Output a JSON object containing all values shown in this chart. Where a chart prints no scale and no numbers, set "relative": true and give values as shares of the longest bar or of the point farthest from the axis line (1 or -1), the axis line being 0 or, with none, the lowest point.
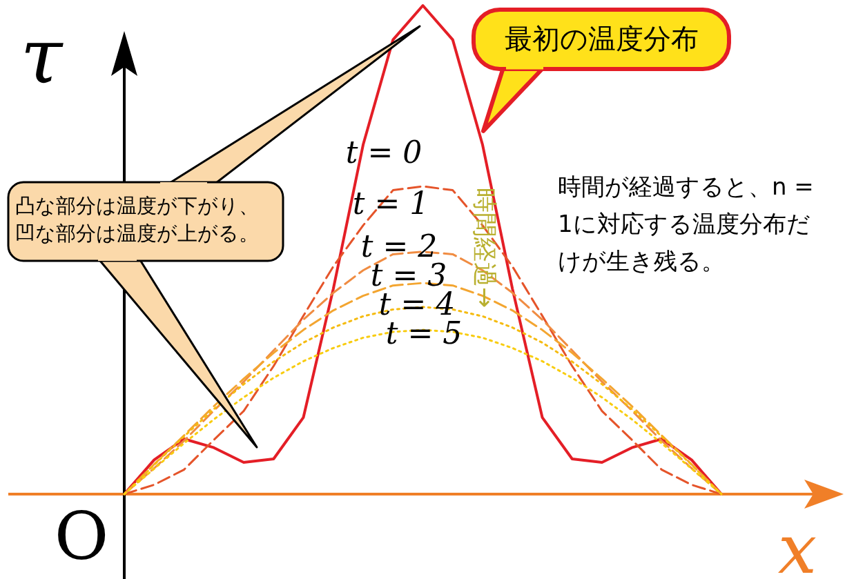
{
  "chart_data": {
    "type": "line",
    "relative": true,
    "xlabel": "x",
    "ylabel": "τ",
    "grid": false,
    "legend": false,
    "marker": "none",
    "categories": [
      null,
      null,
      null,
      null,
      null,
      null,
      null,
      null,
      null,
      null,
      null,
      null,
      null,
      null,
      null,
      null,
      null,
      null,
      null,
      null,
      null
    ],
    "annotations": [
      "O",
      "最初の温度分布",
      "凸な部分は温度が下がり、凹な部分は温度が上がる。",
      "時間が経過すると、n = 1に対応する温度分布だけが生き残る。",
      "時間経過→"
    ],
    "series": [
      {
        "name": "t = 0",
        "color": "#e41e26",
        "line_style": "solid",
        "values": [
          0,
          0.07,
          0.113,
          0.095,
          0.065,
          0.072,
          0.157,
          0.42,
          0.715,
          0.93,
          1,
          0.93,
          0.715,
          0.42,
          0.157,
          0.072,
          0.065,
          0.095,
          0.113,
          0.07,
          0
        ]
      },
      {
        "name": "t = 1",
        "color": "#e5542a",
        "line_style": "dashed",
        "values": [
          0,
          0.019,
          0.05,
          0.111,
          0.17,
          0.262,
          0.365,
          0.466,
          0.55,
          0.622,
          0.63,
          0.622,
          0.55,
          0.466,
          0.365,
          0.262,
          0.17,
          0.111,
          0.05,
          0.019,
          0
        ]
      },
      {
        "name": "t = 2",
        "color": "#f08c42",
        "line_style": "dashed",
        "values": [
          0,
          0.053,
          0.109,
          0.171,
          0.23,
          0.294,
          0.357,
          0.412,
          0.458,
          0.491,
          0.496,
          0.491,
          0.458,
          0.412,
          0.357,
          0.294,
          0.23,
          0.171,
          0.109,
          0.053,
          0
        ]
      },
      {
        "name": "t = 3",
        "color": "#f3a530",
        "line_style": "dashed",
        "values": [
          0,
          0.061,
          0.12,
          0.18,
          0.236,
          0.289,
          0.336,
          0.376,
          0.406,
          0.427,
          0.432,
          0.427,
          0.406,
          0.376,
          0.336,
          0.289,
          0.236,
          0.18,
          0.12,
          0.061,
          0
        ]
      },
      {
        "name": "t = 4",
        "color": "#f5bb10",
        "line_style": "dotted",
        "values": [
          0,
          0.06,
          0.118,
          0.174,
          0.225,
          0.271,
          0.31,
          0.341,
          0.364,
          0.378,
          0.383,
          0.378,
          0.364,
          0.341,
          0.31,
          0.271,
          0.225,
          0.174,
          0.118,
          0.06,
          0
        ]
      },
      {
        "name": "t = 5",
        "color": "#f8cc10",
        "line_style": "dotted",
        "values": [
          0,
          0.052,
          0.104,
          0.153,
          0.198,
          0.238,
          0.272,
          0.299,
          0.32,
          0.332,
          0.336,
          0.332,
          0.32,
          0.299,
          0.272,
          0.238,
          0.198,
          0.153,
          0.104,
          0.052,
          0
        ]
      }
    ]
  }
}
